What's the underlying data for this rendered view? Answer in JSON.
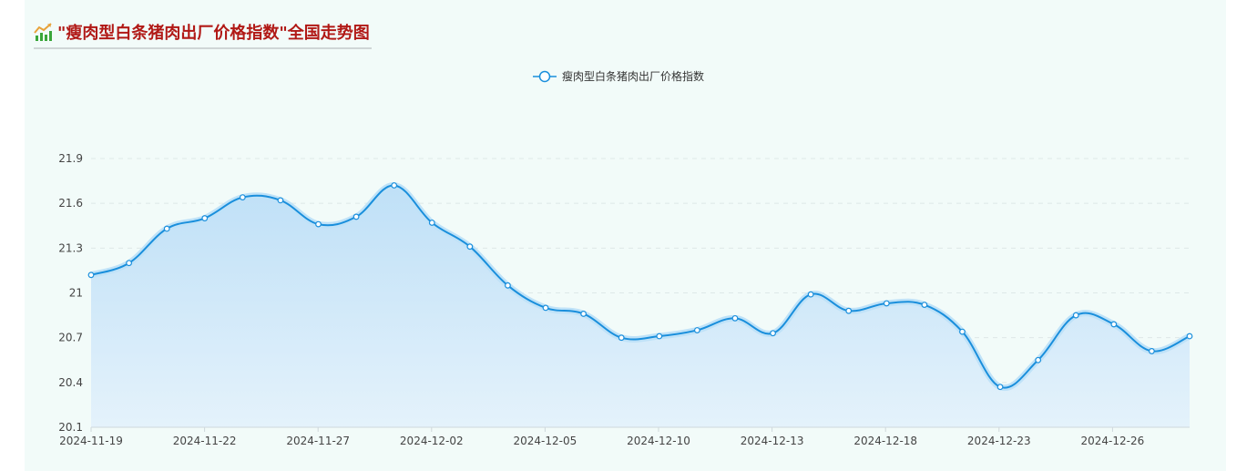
{
  "header": {
    "title": "\"瘦肉型白条猪肉出厂价格指数\"全国走势图",
    "icon": "trend-chart-icon"
  },
  "colors": {
    "line": "#1a8fdc",
    "fill_top": "#bfe0f7",
    "fill_bottom": "#e4f2fb",
    "title": "#b11916",
    "background": "#f2fbf9"
  },
  "chart_data": {
    "type": "area",
    "title": "\"瘦肉型白条猪肉出厂价格指数\"全国走势图",
    "legend": {
      "position": "top-center",
      "entries": [
        "瘦肉型白条猪肉出厂价格指数"
      ]
    },
    "grid": true,
    "ylim": [
      20.1,
      21.9
    ],
    "yticks": [
      "20.1",
      "20.4",
      "20.7",
      "21",
      "21.3",
      "21.6",
      "21.9"
    ],
    "xticks": [
      "2024-11-19",
      "2024-11-22",
      "2024-11-27",
      "2024-12-02",
      "2024-12-05",
      "2024-12-10",
      "2024-12-13",
      "2024-12-18",
      "2024-12-23",
      "2024-12-26"
    ],
    "series": [
      {
        "name": "瘦肉型白条猪肉出厂价格指数",
        "values": [
          21.12,
          21.2,
          21.43,
          21.5,
          21.64,
          21.62,
          21.46,
          21.51,
          21.72,
          21.47,
          21.31,
          21.05,
          20.9,
          20.86,
          20.7,
          20.71,
          20.75,
          20.83,
          20.73,
          20.99,
          20.88,
          20.93,
          20.92,
          20.74,
          20.37,
          20.55,
          20.85,
          20.79,
          20.61,
          20.71
        ]
      }
    ]
  }
}
